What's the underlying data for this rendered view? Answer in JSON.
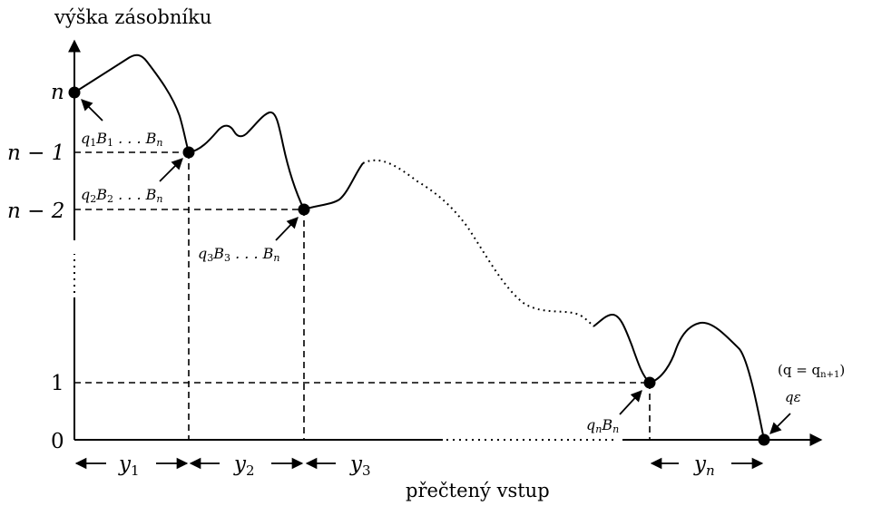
{
  "axis": {
    "ylabel": "výška zásobníku",
    "xlabel": "přečtený vstup"
  },
  "yticks": [
    {
      "id": "n",
      "label": "n"
    },
    {
      "id": "n1",
      "label": "n − 1"
    },
    {
      "id": "n2",
      "label": "n − 2"
    },
    {
      "id": "one",
      "label": "1"
    },
    {
      "id": "zero",
      "label": "0"
    }
  ],
  "segments": [
    {
      "id": "y1",
      "label": "y",
      "sub": "1"
    },
    {
      "id": "y2",
      "label": "y",
      "sub": "2"
    },
    {
      "id": "y3",
      "label": "y",
      "sub": "3"
    },
    {
      "id": "yn",
      "label": "y",
      "sub": "n"
    }
  ],
  "configs": [
    {
      "id": "c1",
      "q": "q",
      "qsub": "1",
      "b": "B",
      "bsub": "1",
      "tail": " . . . B",
      "tailsub": "n"
    },
    {
      "id": "c2",
      "q": "q",
      "qsub": "2",
      "b": "B",
      "bsub": "2",
      "tail": " . . . B",
      "tailsub": "n"
    },
    {
      "id": "c3",
      "q": "q",
      "qsub": "3",
      "b": "B",
      "bsub": "3",
      "tail": " . . . B",
      "tailsub": "n"
    },
    {
      "id": "cn",
      "q": "q",
      "qsub": "n",
      "b": "B",
      "bsub": "n",
      "tail": "",
      "tailsub": ""
    }
  ],
  "final": {
    "note_prefix": "(q = q",
    "note_sub": "n+1",
    "note_suffix": ")",
    "state": "qε"
  }
}
